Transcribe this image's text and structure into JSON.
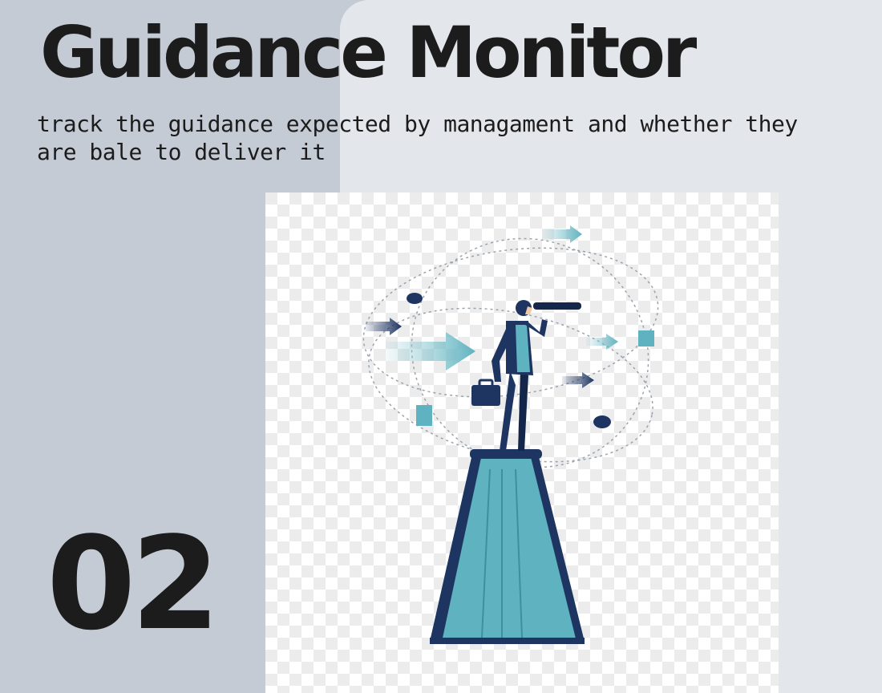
{
  "slide": {
    "title": "Guidance Monitor",
    "description": "track the guidance expected by managament and whether they are bale to deliver it",
    "number": "02",
    "illustration": "man-with-telescope-on-book-illustration",
    "colors": {
      "left_panel": "#c5cbd4",
      "right_panel": "#e3e6ea",
      "text": "#1c1c1c",
      "accent_teal": "#5fb3c0",
      "accent_navy": "#1e3561"
    }
  }
}
